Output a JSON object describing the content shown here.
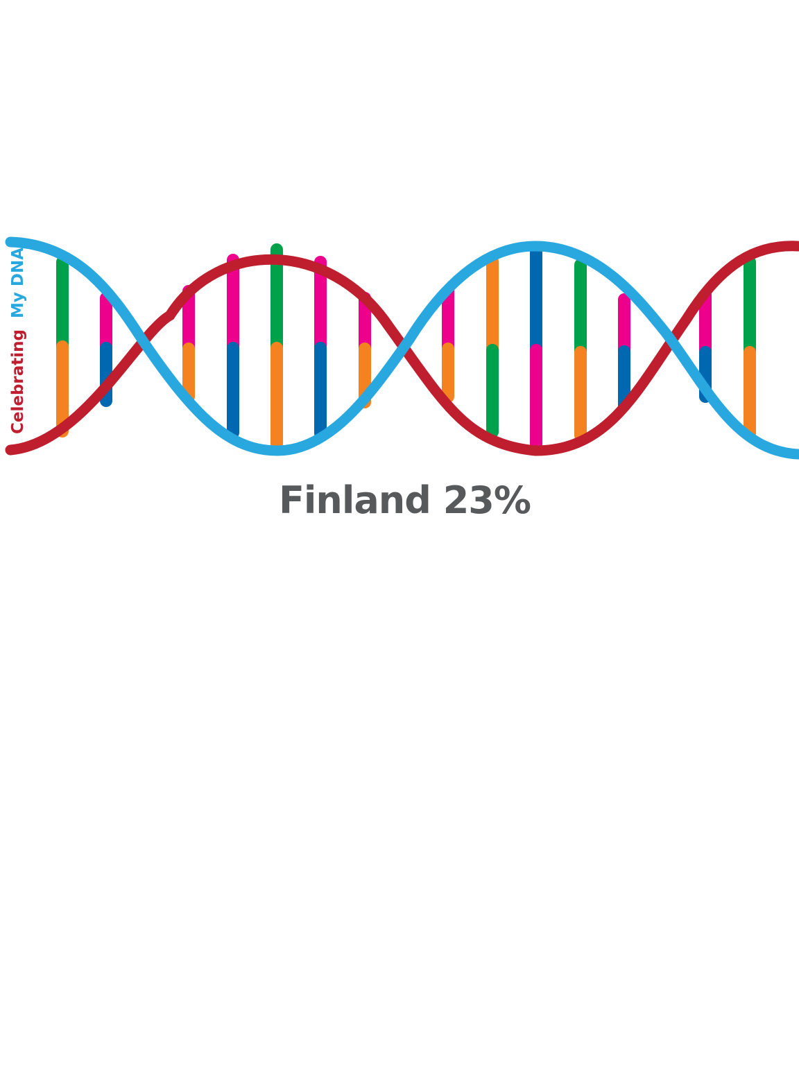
{
  "brand": {
    "word_celebrating": "Celebrating",
    "word_my_dna": "My DNA"
  },
  "caption": {
    "country": "Finland",
    "percentage": "23%"
  },
  "colors": {
    "strand_red": "#be1e2d",
    "strand_blue": "#29a8e0",
    "base_green": "#00a14b",
    "base_orange": "#f58220",
    "base_pink": "#ec008c",
    "base_blue": "#0067b1",
    "caption_gray": "#58595b"
  }
}
